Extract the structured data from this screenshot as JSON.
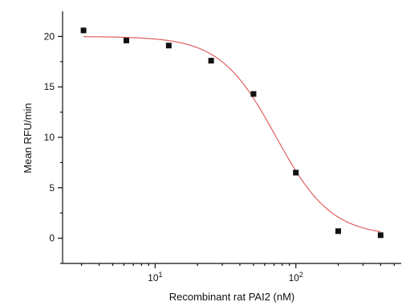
{
  "chart_data": {
    "type": "scatter",
    "xlabel": "Recombinant rat PAI2 (nM)",
    "ylabel": "Mean RFU/min",
    "x_scale": "log",
    "xlim": [
      2.2,
      560
    ],
    "ylim": [
      -2.5,
      22.5
    ],
    "x_ticks": [
      {
        "value": 10,
        "base": "10",
        "exp": "1"
      },
      {
        "value": 100,
        "base": "10",
        "exp": "2"
      }
    ],
    "y_ticks": [
      0,
      5,
      10,
      15,
      20
    ],
    "y_tick_labels": [
      "0",
      "5",
      "10",
      "15",
      "20"
    ],
    "grid": false,
    "legend": "none",
    "series": [
      {
        "marker": "square",
        "color": "#111111",
        "x": [
          3.1,
          6.25,
          12.5,
          25,
          50,
          100,
          200,
          400
        ],
        "y": [
          20.6,
          19.6,
          19.1,
          17.6,
          14.3,
          6.5,
          0.7,
          0.3
        ]
      }
    ],
    "fit_curve": {
      "model": "4PL",
      "color": "#e06060",
      "top": 20.0,
      "bottom": 0.2,
      "ec50": 72,
      "hill": 2.2,
      "x_range": [
        3.1,
        400
      ]
    }
  }
}
